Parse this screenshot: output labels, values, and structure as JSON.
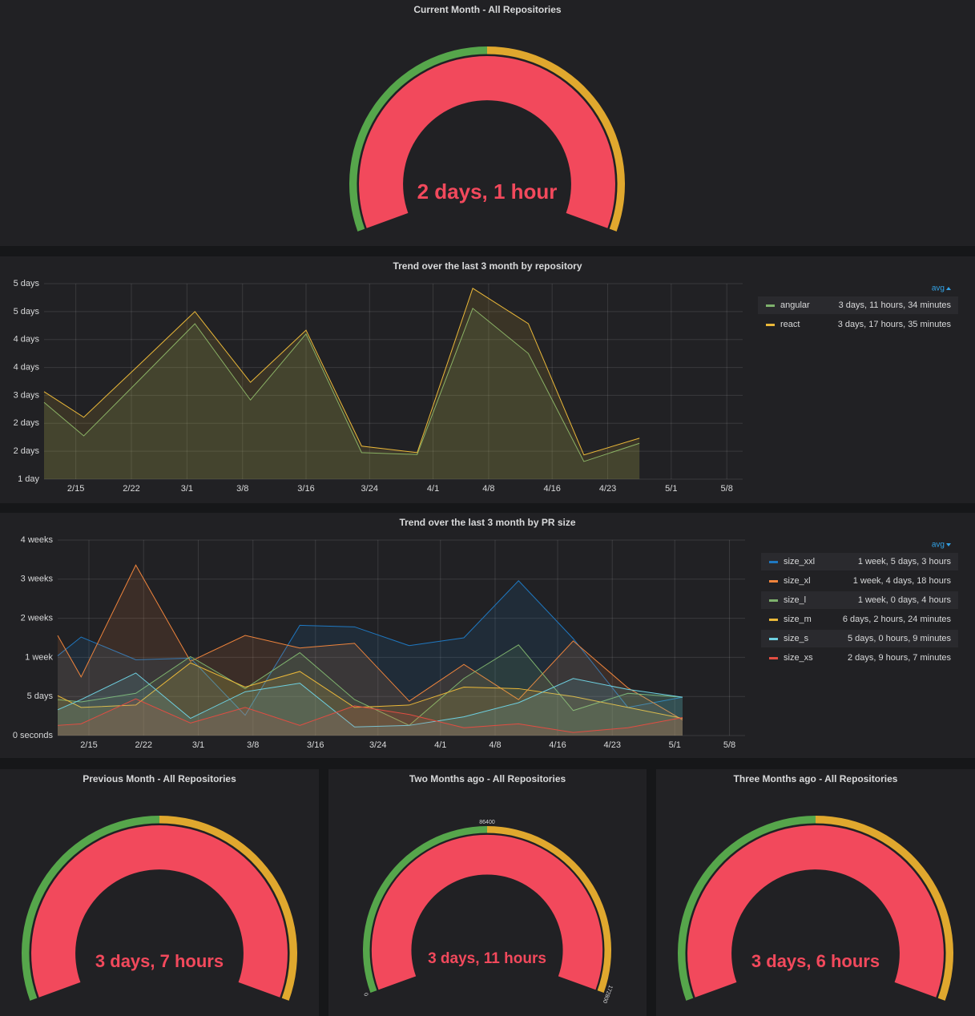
{
  "chart_data": [
    {
      "type": "gauge",
      "title": "Current Month - All Repositories",
      "values": [
        176400
      ],
      "value_labels": [
        "2 days, 1 hour"
      ],
      "range": [
        0,
        172800
      ],
      "thresholds": [
        86400,
        172800
      ],
      "threshold_colors": [
        "#56a64b",
        "#e0a82e",
        "#f2495c"
      ]
    },
    {
      "type": "line",
      "title": "Trend over the last 3 month by repository",
      "x": [
        "2/11",
        "2/16",
        "2/23",
        "3/2",
        "3/9",
        "3/16",
        "3/23",
        "3/30",
        "4/6",
        "4/13",
        "4/20",
        "4/27"
      ],
      "xlim": [
        "2/11",
        "5/10"
      ],
      "xticks": [
        "2/15",
        "2/22",
        "3/1",
        "3/8",
        "3/16",
        "3/24",
        "4/1",
        "4/8",
        "4/16",
        "4/23",
        "5/1",
        "5/8"
      ],
      "ylim": [
        1.2,
        5.4
      ],
      "yticks": [
        {
          "value": 1.2,
          "label": "1 day"
        },
        {
          "value": 1.8,
          "label": "2 days"
        },
        {
          "value": 2.4,
          "label": "2 days"
        },
        {
          "value": 3.0,
          "label": "3 days"
        },
        {
          "value": 3.6,
          "label": "4 days"
        },
        {
          "value": 4.2,
          "label": "4 days"
        },
        {
          "value": 4.8,
          "label": "5 days"
        },
        {
          "value": 5.4,
          "label": "5 days"
        }
      ],
      "grid": true,
      "legend_column": "avg",
      "legend_sort": "ascending",
      "series": [
        {
          "name": "angular",
          "color": "#7eb26d",
          "legend_value": "3 days, 11 hours, 34 minutes",
          "values": [
            2.85,
            2.13,
            3.33,
            4.54,
            2.9,
            4.32,
            1.77,
            1.73,
            4.87,
            3.9,
            1.58,
            1.97
          ]
        },
        {
          "name": "react",
          "color": "#eab839",
          "legend_value": "3 days, 17 hours, 35 minutes",
          "values": [
            3.08,
            2.53,
            3.66,
            4.8,
            3.28,
            4.4,
            1.91,
            1.77,
            5.3,
            4.54,
            1.72,
            2.08
          ]
        }
      ]
    },
    {
      "type": "line",
      "title": "Trend over the last 3 month by PR size",
      "x": [
        "2/11",
        "2/14",
        "2/21",
        "2/28",
        "3/7",
        "3/14",
        "3/21",
        "3/28",
        "4/4",
        "4/11",
        "4/18",
        "4/25",
        "5/2"
      ],
      "xlim": [
        "2/11",
        "5/10"
      ],
      "xticks": [
        "2/15",
        "2/22",
        "3/1",
        "3/8",
        "3/16",
        "3/24",
        "4/1",
        "4/8",
        "4/16",
        "4/23",
        "5/1",
        "5/8"
      ],
      "ylim": [
        0,
        25
      ],
      "yticks": [
        {
          "value": 0,
          "label": "0 seconds"
        },
        {
          "value": 5,
          "label": "5 days"
        },
        {
          "value": 10,
          "label": "1 week"
        },
        {
          "value": 15,
          "label": "2 weeks"
        },
        {
          "value": 20,
          "label": "3 weeks"
        },
        {
          "value": 25,
          "label": "4 weeks"
        }
      ],
      "grid": true,
      "legend_column": "avg",
      "legend_sort": "descending",
      "series": [
        {
          "name": "size_xxl",
          "color": "#1f78c1",
          "legend_value": "1 week, 5 days, 3 hours",
          "values": [
            10.2,
            12.6,
            9.7,
            9.9,
            2.6,
            14.1,
            13.9,
            11.5,
            12.5,
            19.8,
            12.4,
            3.6,
            4.9
          ]
        },
        {
          "name": "size_xl",
          "color": "#ef843c",
          "legend_value": "1 week, 4 days, 18 hours",
          "values": [
            12.8,
            7.5,
            21.8,
            9.5,
            12.8,
            11.2,
            11.8,
            4.4,
            9.1,
            4.6,
            12.1,
            6.1,
            2.0
          ]
        },
        {
          "name": "size_l",
          "color": "#7eb26d",
          "legend_value": "1 week, 0 days, 4 hours",
          "values": [
            4.6,
            4.3,
            5.4,
            10.1,
            6.0,
            10.6,
            4.6,
            1.3,
            7.3,
            11.6,
            3.2,
            5.4,
            4.9
          ]
        },
        {
          "name": "size_m",
          "color": "#eab839",
          "legend_value": "6 days, 2 hours, 24 minutes",
          "values": [
            5.1,
            3.6,
            3.9,
            9.3,
            6.2,
            8.2,
            3.6,
            3.9,
            6.2,
            6.0,
            5.0,
            3.6,
            2.2
          ]
        },
        {
          "name": "size_s",
          "color": "#6ed0e0",
          "legend_value": "5 days, 0 hours, 9 minutes",
          "values": [
            3.3,
            4.6,
            8.0,
            2.2,
            5.6,
            6.7,
            1.1,
            1.3,
            2.4,
            4.2,
            7.3,
            5.9,
            4.9
          ]
        },
        {
          "name": "size_xs",
          "color": "#e24d42",
          "legend_value": "2 days, 9 hours, 7 minutes",
          "values": [
            1.3,
            1.5,
            4.7,
            1.6,
            3.6,
            1.3,
            3.8,
            2.7,
            1.0,
            1.5,
            0.4,
            1.0,
            2.3
          ]
        }
      ]
    },
    {
      "type": "gauge",
      "title": "Previous Month - All Repositories",
      "values": [
        284400
      ],
      "value_labels": [
        "3 days, 7 hours"
      ],
      "range": [
        0,
        172800
      ],
      "thresholds": [
        86400,
        172800
      ],
      "threshold_colors": [
        "#56a64b",
        "#e0a82e",
        "#f2495c"
      ]
    },
    {
      "type": "gauge",
      "title": "Two Months ago - All Repositories",
      "values": [
        298800
      ],
      "value_labels": [
        "3 days, 11 hours"
      ],
      "range": [
        0,
        172800
      ],
      "ticks": [
        0,
        86400,
        172800
      ],
      "thresholds": [
        86400,
        172800
      ],
      "threshold_colors": [
        "#56a64b",
        "#e0a82e",
        "#f2495c"
      ]
    },
    {
      "type": "gauge",
      "title": "Three Months ago - All Repositories",
      "values": [
        280800
      ],
      "value_labels": [
        "3 days, 6 hours"
      ],
      "range": [
        0,
        172800
      ],
      "thresholds": [
        86400,
        172800
      ],
      "threshold_colors": [
        "#56a64b",
        "#e0a82e",
        "#f2495c"
      ]
    }
  ]
}
